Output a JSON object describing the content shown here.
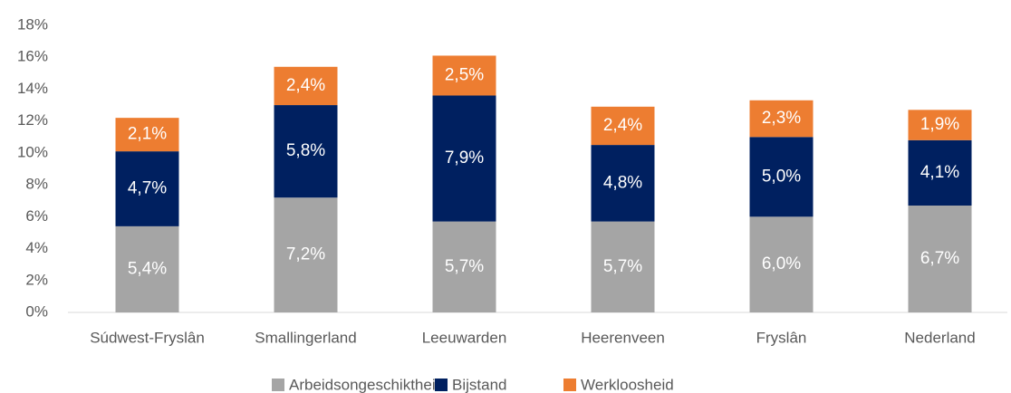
{
  "chart_data": {
    "type": "stacked_bar",
    "categories": [
      "Súdwest-Fryslân",
      "Smallingerland",
      "Leeuwarden",
      "Heerenveen",
      "Fryslân",
      "Nederland"
    ],
    "series": [
      {
        "name": "Arbeidsongeschiktheid",
        "color": "#a5a5a5",
        "values": [
          5.4,
          7.2,
          5.7,
          5.7,
          6.0,
          6.7
        ],
        "value_labels": [
          "5,4%",
          "7,2%",
          "5,7%",
          "5,7%",
          "6,0%",
          "6,7%"
        ]
      },
      {
        "name": "Bijstand",
        "color": "#002060",
        "values": [
          4.7,
          5.8,
          7.9,
          4.8,
          5.0,
          4.1
        ],
        "value_labels": [
          "4,7%",
          "5,8%",
          "7,9%",
          "4,8%",
          "5,0%",
          "4,1%"
        ]
      },
      {
        "name": "Werkloosheid",
        "color": "#ed7d31",
        "values": [
          2.1,
          2.4,
          2.5,
          2.4,
          2.3,
          1.9
        ],
        "value_labels": [
          "2,1%",
          "2,4%",
          "2,5%",
          "2,4%",
          "2,3%",
          "1,9%"
        ]
      }
    ],
    "ylim": [
      0,
      18
    ],
    "yticks": [
      {
        "value": 0,
        "label": "0%"
      },
      {
        "value": 2,
        "label": "2%"
      },
      {
        "value": 4,
        "label": "4%"
      },
      {
        "value": 6,
        "label": "6%"
      },
      {
        "value": 8,
        "label": "8%"
      },
      {
        "value": 10,
        "label": "10%"
      },
      {
        "value": 12,
        "label": "12%"
      },
      {
        "value": 14,
        "label": "14%"
      },
      {
        "value": 16,
        "label": "16%"
      },
      {
        "value": 18,
        "label": "18%"
      }
    ],
    "legend": "bottom"
  }
}
